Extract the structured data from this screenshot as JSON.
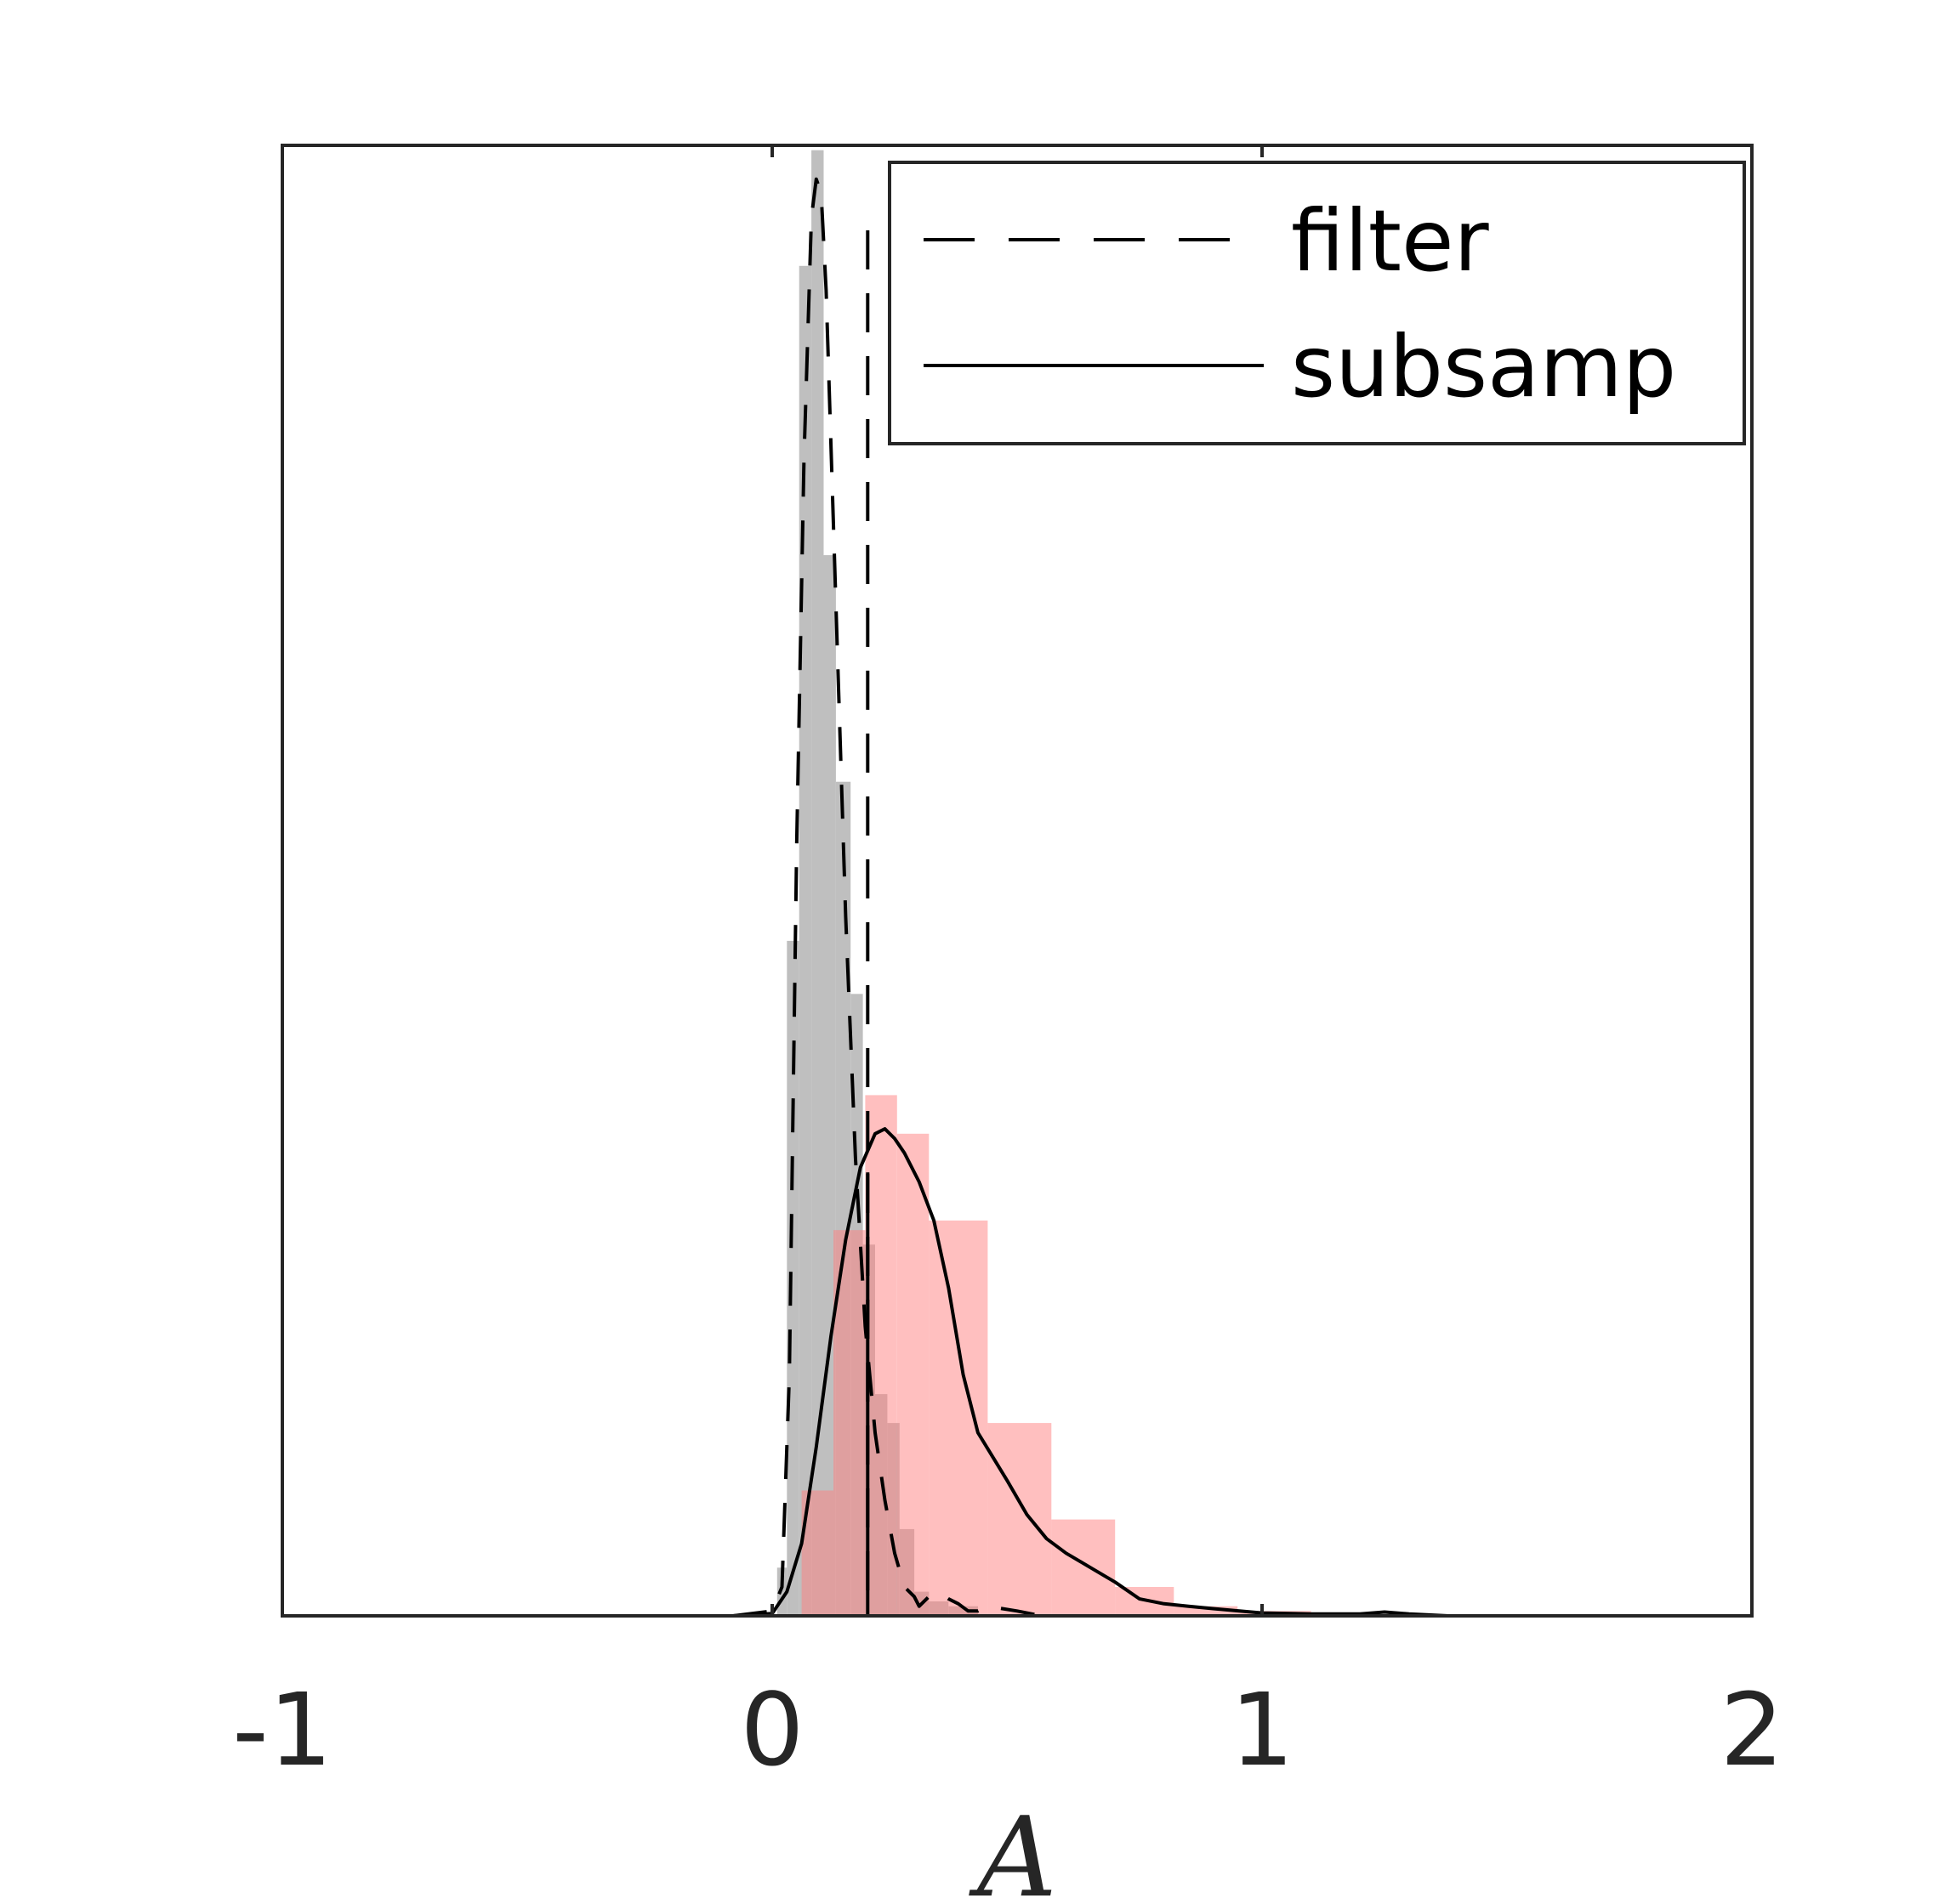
{
  "chart_data": {
    "type": "histogram",
    "title": "",
    "xlabel": "A",
    "ylabel": "",
    "xlim": [
      -1,
      2
    ],
    "ylim": [
      0,
      3.05
    ],
    "xticks": [
      -1,
      0,
      1,
      2
    ],
    "xtick_labels": [
      "-1",
      "0",
      "1",
      "2"
    ],
    "grid": false,
    "legend": {
      "placement": "top-right",
      "entries": [
        {
          "label": "filter",
          "style": "dashed"
        },
        {
          "label": "subsamp",
          "style": "solid"
        }
      ]
    },
    "histograms": [
      {
        "name": "filter",
        "color": "#bfbfbf",
        "bins": [
          {
            "x0": 0.01,
            "x1": 0.03,
            "y": 0.1
          },
          {
            "x0": 0.03,
            "x1": 0.055,
            "y": 1.4
          },
          {
            "x0": 0.055,
            "x1": 0.08,
            "y": 2.8
          },
          {
            "x0": 0.08,
            "x1": 0.105,
            "y": 3.04
          },
          {
            "x0": 0.105,
            "x1": 0.13,
            "y": 2.2
          },
          {
            "x0": 0.13,
            "x1": 0.16,
            "y": 1.73
          },
          {
            "x0": 0.16,
            "x1": 0.185,
            "y": 1.29
          },
          {
            "x0": 0.185,
            "x1": 0.21,
            "y": 0.77
          },
          {
            "x0": 0.21,
            "x1": 0.235,
            "y": 0.46
          },
          {
            "x0": 0.235,
            "x1": 0.26,
            "y": 0.4
          },
          {
            "x0": 0.26,
            "x1": 0.29,
            "y": 0.18
          },
          {
            "x0": 0.29,
            "x1": 0.32,
            "y": 0.05
          },
          {
            "x0": 0.32,
            "x1": 0.36,
            "y": 0.03
          },
          {
            "x0": 0.36,
            "x1": 0.42,
            "y": 0.02
          }
        ]
      },
      {
        "name": "subsamp",
        "color": "#ff8080",
        "bins": [
          {
            "x0": 0.06,
            "x1": 0.125,
            "y": 0.26
          },
          {
            "x0": 0.125,
            "x1": 0.19,
            "y": 0.8
          },
          {
            "x0": 0.19,
            "x1": 0.255,
            "y": 1.08
          },
          {
            "x0": 0.255,
            "x1": 0.32,
            "y": 1.0
          },
          {
            "x0": 0.32,
            "x1": 0.44,
            "y": 0.82
          },
          {
            "x0": 0.44,
            "x1": 0.57,
            "y": 0.4
          },
          {
            "x0": 0.57,
            "x1": 0.7,
            "y": 0.2
          },
          {
            "x0": 0.7,
            "x1": 0.82,
            "y": 0.06
          },
          {
            "x0": 0.82,
            "x1": 0.95,
            "y": 0.02
          },
          {
            "x0": 0.95,
            "x1": 1.1,
            "y": 0.01
          }
        ]
      }
    ],
    "series": [
      {
        "name": "filter",
        "style": "dashed",
        "x": [
          -0.08,
          0.0,
          0.02,
          0.035,
          0.05,
          0.065,
          0.08,
          0.09,
          0.1,
          0.11,
          0.13,
          0.15,
          0.17,
          0.19,
          0.21,
          0.23,
          0.25,
          0.27,
          0.29,
          0.3,
          0.32,
          0.34,
          0.36,
          0.38,
          0.4,
          0.42,
          0.44,
          0.5,
          0.55,
          0.6
        ],
        "y": [
          0.0,
          0.01,
          0.06,
          0.5,
          1.6,
          2.4,
          2.9,
          2.98,
          2.95,
          2.75,
          2.1,
          1.45,
          0.95,
          0.6,
          0.38,
          0.24,
          0.13,
          0.06,
          0.04,
          0.02,
          0.04,
          0.05,
          0.035,
          0.025,
          0.01,
          0.01,
          0.02,
          0.01,
          0.0,
          0.0
        ]
      },
      {
        "name": "subsamp",
        "style": "solid",
        "x": [
          -0.08,
          0.0,
          0.03,
          0.06,
          0.09,
          0.12,
          0.15,
          0.18,
          0.21,
          0.23,
          0.25,
          0.27,
          0.3,
          0.33,
          0.36,
          0.39,
          0.42,
          0.45,
          0.48,
          0.52,
          0.56,
          0.6,
          0.65,
          0.7,
          0.75,
          0.8,
          0.85,
          0.9,
          1.0,
          1.1,
          1.2,
          1.25,
          1.3,
          1.38
        ],
        "y": [
          0.0,
          0.005,
          0.05,
          0.15,
          0.35,
          0.58,
          0.78,
          0.93,
          1.0,
          1.01,
          0.99,
          0.96,
          0.9,
          0.82,
          0.68,
          0.5,
          0.38,
          0.33,
          0.28,
          0.21,
          0.16,
          0.13,
          0.1,
          0.07,
          0.035,
          0.025,
          0.02,
          0.015,
          0.006,
          0.004,
          0.004,
          0.008,
          0.004,
          0.0
        ]
      }
    ],
    "vertical_lines": [
      {
        "name": "filter-cutoff",
        "x": 0.195,
        "style": "dashed"
      },
      {
        "name": "subsamp-cutoff",
        "x": 0.195,
        "style": "solid",
        "y_top": 0.92
      }
    ]
  }
}
